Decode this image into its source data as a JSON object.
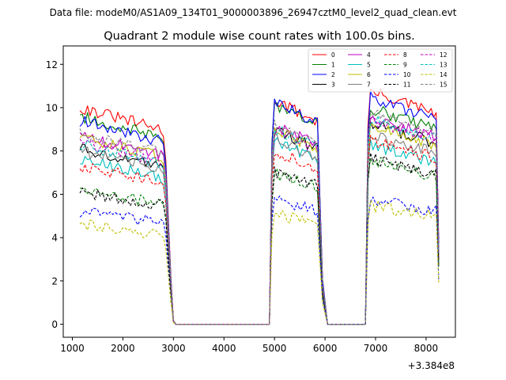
{
  "figure": {
    "suptitle": "Data file: modeM0/AS1A09_134T01_9000003896_26947cztM0_level2_quad_clean.evt"
  },
  "chart_data": {
    "type": "line",
    "title": "Quadrant 2 module wise count rates with 100.0s bins.",
    "xlabel": "",
    "ylabel": "",
    "x_offset_label": "+3.384e8",
    "x_unit_note": "x values are relative to the offset 3.384e8",
    "xlim": [
      820,
      8580
    ],
    "ylim": [
      -0.6,
      12.85
    ],
    "xticks": [
      1000,
      2000,
      3000,
      4000,
      5000,
      6000,
      7000,
      8000
    ],
    "xtick_labels": [
      "1000",
      "2000",
      "3000",
      "4000",
      "5000",
      "6000",
      "7000",
      "8000"
    ],
    "yticks": [
      0,
      2,
      4,
      6,
      8,
      10,
      12
    ],
    "ytick_labels": [
      "0",
      "2",
      "4",
      "6",
      "8",
      "10",
      "12"
    ],
    "grid": false,
    "legend_position": "top-right",
    "legend_columns": 4,
    "segments": [
      {
        "x_start": 1150,
        "x_end": 2750,
        "step": 50,
        "drop_x": [
          2800,
          2850,
          2900,
          2950,
          3000
        ],
        "drop_frac": [
          0.98,
          0.85,
          0.55,
          0.25,
          0.02
        ]
      },
      {
        "x_start": 4950,
        "x_end": 5850,
        "step": 50
      },
      {
        "x_start": 6850,
        "x_end": 8200,
        "step": 50
      }
    ],
    "zero_spans": [
      [
        3050,
        4900
      ],
      [
        6050,
        6800
      ]
    ],
    "series": [
      {
        "name": "0",
        "color": "#ff0000",
        "style": "solid",
        "levels": [
          10.0,
          10.4,
          10.8
        ]
      },
      {
        "name": "1",
        "color": "#008000",
        "style": "solid",
        "levels": [
          9.6,
          10.2,
          10.0
        ]
      },
      {
        "name": "2",
        "color": "#0000ff",
        "style": "solid",
        "levels": [
          9.4,
          10.3,
          10.5
        ]
      },
      {
        "name": "3",
        "color": "#000000",
        "style": "solid",
        "levels": [
          8.1,
          9.0,
          9.3
        ]
      },
      {
        "name": "4",
        "color": "#bf00bf",
        "style": "solid",
        "levels": [
          8.7,
          9.2,
          9.6
        ]
      },
      {
        "name": "5",
        "color": "#00bfbf",
        "style": "solid",
        "levels": [
          7.6,
          8.5,
          8.3
        ]
      },
      {
        "name": "6",
        "color": "#bfbf00",
        "style": "solid",
        "levels": [
          8.6,
          9.0,
          9.2
        ]
      },
      {
        "name": "7",
        "color": "#808080",
        "style": "solid",
        "levels": [
          8.0,
          8.6,
          8.8
        ]
      },
      {
        "name": "8",
        "color": "#ff0000",
        "style": "dashed",
        "levels": [
          7.3,
          8.0,
          8.5
        ]
      },
      {
        "name": "9",
        "color": "#008000",
        "style": "dashed",
        "levels": [
          6.2,
          7.0,
          7.6
        ]
      },
      {
        "name": "10",
        "color": "#0000ff",
        "style": "dashed",
        "levels": [
          5.2,
          5.8,
          5.8
        ]
      },
      {
        "name": "11",
        "color": "#000000",
        "style": "dashed",
        "levels": [
          6.1,
          7.1,
          7.7
        ]
      },
      {
        "name": "12",
        "color": "#bf00bf",
        "style": "dashed",
        "levels": [
          8.4,
          9.0,
          9.5
        ]
      },
      {
        "name": "13",
        "color": "#00bfbf",
        "style": "dashed",
        "levels": [
          8.3,
          9.1,
          9.5
        ]
      },
      {
        "name": "14",
        "color": "#bfbf00",
        "style": "dashed",
        "levels": [
          4.6,
          5.1,
          5.5
        ]
      },
      {
        "name": "15",
        "color": "#808080",
        "style": "dashed",
        "levels": [
          8.8,
          9.3,
          9.8
        ]
      }
    ]
  }
}
